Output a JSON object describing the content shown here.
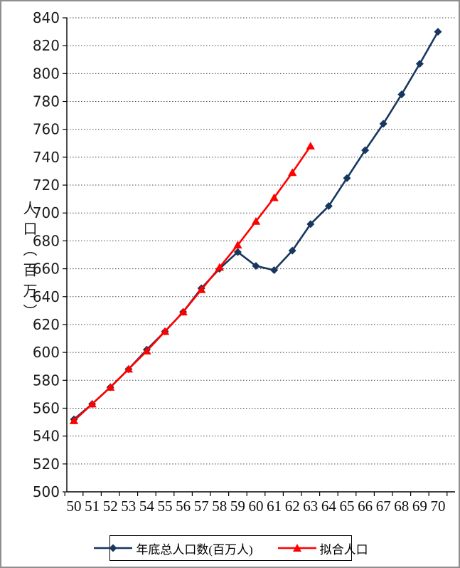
{
  "chart_data": {
    "type": "line",
    "title": "",
    "xlabel": "",
    "ylabel": "人口（百万）",
    "ylim": [
      500,
      840
    ],
    "ytick_step": 20,
    "x": [
      50,
      51,
      52,
      53,
      54,
      55,
      56,
      57,
      58,
      59,
      60,
      61,
      62,
      63,
      64,
      65,
      66,
      67,
      68,
      69,
      70
    ],
    "series": [
      {
        "name": "年底总人口数(百万人)",
        "color": "#17375E",
        "marker": "diamond",
        "values": [
          552,
          563,
          575,
          588,
          602,
          615,
          629,
          646,
          660,
          672,
          662,
          659,
          673,
          692,
          705,
          725,
          745,
          764,
          785,
          807,
          830
        ]
      },
      {
        "name": "拟合人口",
        "color": "#FF0000",
        "marker": "triangle",
        "values": [
          551,
          563,
          575,
          588,
          601,
          615,
          629,
          645,
          661,
          677,
          694,
          711,
          729,
          748
        ]
      }
    ],
    "grid": "horizontal-dotted",
    "legend_position": "bottom"
  }
}
